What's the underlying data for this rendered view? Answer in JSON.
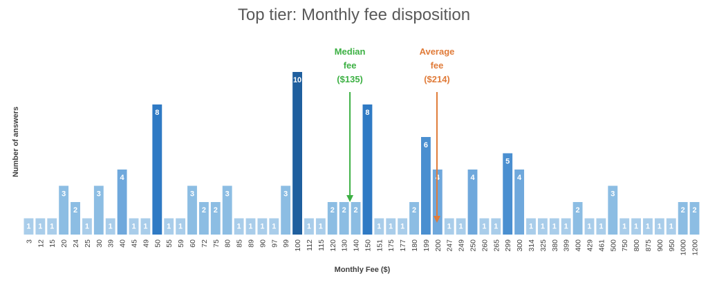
{
  "chart_data": {
    "type": "bar",
    "title": "Top tier: Monthly fee disposition",
    "xlabel": "Monthly Fee ($)",
    "ylabel": "Number of answers",
    "ylim": [
      0,
      10
    ],
    "grid": false,
    "categories": [
      "3",
      "12",
      "15",
      "20",
      "24",
      "25",
      "30",
      "39",
      "40",
      "45",
      "49",
      "50",
      "55",
      "59",
      "60",
      "72",
      "75",
      "80",
      "85",
      "89",
      "90",
      "97",
      "99",
      "100",
      "112",
      "115",
      "120",
      "130",
      "140",
      "150",
      "151",
      "175",
      "177",
      "180",
      "199",
      "200",
      "247",
      "249",
      "250",
      "260",
      "265",
      "299",
      "300",
      "314",
      "325",
      "380",
      "399",
      "400",
      "429",
      "461",
      "500",
      "750",
      "800",
      "875",
      "900",
      "950",
      "1000",
      "1200"
    ],
    "values": [
      1,
      1,
      1,
      3,
      2,
      1,
      3,
      1,
      4,
      1,
      1,
      8,
      1,
      1,
      3,
      2,
      2,
      3,
      1,
      1,
      1,
      1,
      3,
      10,
      1,
      1,
      2,
      2,
      2,
      8,
      1,
      1,
      1,
      2,
      6,
      4,
      1,
      1,
      4,
      1,
      1,
      5,
      4,
      1,
      1,
      1,
      1,
      2,
      1,
      1,
      3,
      1,
      1,
      1,
      1,
      1,
      2,
      2
    ],
    "annotations": [
      {
        "lines": [
          "Median",
          "fee",
          "($135)"
        ],
        "category": "130",
        "color": "#3cb043"
      },
      {
        "lines": [
          "Average",
          "fee",
          "($214)"
        ],
        "category": "200",
        "color": "#e07b39"
      }
    ],
    "colors": {
      "scale": [
        "#a9cdea",
        "#8cbde3",
        "#6fa8dc",
        "#4a8fd0",
        "#2f7ac4",
        "#1f5f9e"
      ],
      "tick_text": "#404040"
    }
  }
}
